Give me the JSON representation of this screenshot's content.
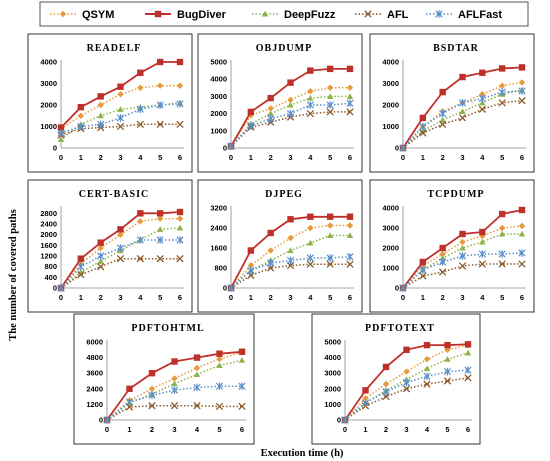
{
  "figure": {
    "ylabel": "The number of covered paths",
    "xlabel": "Execution time (h)"
  },
  "legend": [
    {
      "name": "QSYM",
      "color": "#E69A3D",
      "marker": "diamond",
      "dash": "dot"
    },
    {
      "name": "BugDiver",
      "color": "#C0302A",
      "marker": "square",
      "dash": "solid"
    },
    {
      "name": "DeepFuzz",
      "color": "#8DB34A",
      "marker": "triangle",
      "dash": "dot"
    },
    {
      "name": "AFL",
      "color": "#8C5A2B",
      "marker": "x",
      "dash": "dot"
    },
    {
      "name": "AFLFast",
      "color": "#5B8FC9",
      "marker": "star",
      "dash": "dot"
    }
  ],
  "chart_data": [
    {
      "type": "line",
      "title": "READELF",
      "x": [
        0,
        1,
        2,
        3,
        4,
        5,
        6
      ],
      "ylim": [
        0,
        4000
      ],
      "yticks": [
        0,
        1000,
        2000,
        3000,
        4000
      ],
      "series": [
        {
          "name": "QSYM",
          "values": [
            900,
            1500,
            2000,
            2500,
            2800,
            2900,
            2900
          ]
        },
        {
          "name": "BugDiver",
          "values": [
            950,
            1900,
            2400,
            2850,
            3500,
            4000,
            4000
          ]
        },
        {
          "name": "DeepFuzz",
          "values": [
            400,
            1100,
            1500,
            1800,
            1900,
            2000,
            2100
          ]
        },
        {
          "name": "AFL",
          "values": [
            600,
            900,
            950,
            1000,
            1100,
            1100,
            1100
          ]
        },
        {
          "name": "AFLFast",
          "values": [
            700,
            1000,
            1100,
            1400,
            1800,
            2000,
            2050
          ]
        }
      ]
    },
    {
      "type": "line",
      "title": "OBJDUMP",
      "x": [
        0,
        1,
        2,
        3,
        4,
        5,
        6
      ],
      "ylim": [
        0,
        5000
      ],
      "yticks": [
        0,
        1000,
        2000,
        3000,
        4000,
        5000
      ],
      "series": [
        {
          "name": "QSYM",
          "values": [
            100,
            1900,
            2300,
            2800,
            3300,
            3500,
            3500
          ]
        },
        {
          "name": "BugDiver",
          "values": [
            100,
            2100,
            2900,
            3800,
            4500,
            4600,
            4600
          ]
        },
        {
          "name": "DeepFuzz",
          "values": [
            100,
            1400,
            2000,
            2500,
            2900,
            3000,
            3000
          ]
        },
        {
          "name": "AFL",
          "values": [
            100,
            1200,
            1500,
            1800,
            2000,
            2100,
            2100
          ]
        },
        {
          "name": "AFLFast",
          "values": [
            100,
            1300,
            1700,
            2000,
            2500,
            2500,
            2600
          ]
        }
      ]
    },
    {
      "type": "line",
      "title": "BSDTAR",
      "x": [
        0,
        1,
        2,
        3,
        4,
        5,
        6
      ],
      "ylim": [
        0,
        4000
      ],
      "yticks": [
        0,
        1000,
        2000,
        3000,
        4000
      ],
      "series": [
        {
          "name": "QSYM",
          "values": [
            0,
            1000,
            1700,
            2100,
            2500,
            2900,
            3050
          ]
        },
        {
          "name": "BugDiver",
          "values": [
            0,
            1400,
            2600,
            3300,
            3500,
            3700,
            3750
          ]
        },
        {
          "name": "DeepFuzz",
          "values": [
            0,
            800,
            1300,
            1700,
            2100,
            2500,
            2700
          ]
        },
        {
          "name": "AFL",
          "values": [
            0,
            700,
            1100,
            1400,
            1800,
            2100,
            2200
          ]
        },
        {
          "name": "AFLFast",
          "values": [
            0,
            1000,
            1600,
            2100,
            2300,
            2600,
            2650
          ]
        }
      ]
    },
    {
      "type": "line",
      "title": "CERT-BASIC",
      "x": [
        0,
        1,
        2,
        3,
        4,
        5,
        6
      ],
      "ylim": [
        0,
        3000
      ],
      "yticks": [
        0,
        400,
        800,
        1200,
        1600,
        2000,
        2400,
        2800
      ],
      "series": [
        {
          "name": "QSYM",
          "values": [
            0,
            900,
            1500,
            2000,
            2500,
            2600,
            2600
          ]
        },
        {
          "name": "BugDiver",
          "values": [
            0,
            1100,
            1700,
            2200,
            2800,
            2800,
            2850
          ]
        },
        {
          "name": "DeepFuzz",
          "values": [
            0,
            600,
            1000,
            1400,
            1800,
            2200,
            2250
          ]
        },
        {
          "name": "AFL",
          "values": [
            0,
            500,
            800,
            1100,
            1100,
            1100,
            1100
          ]
        },
        {
          "name": "AFLFast",
          "values": [
            0,
            800,
            1200,
            1500,
            1800,
            1800,
            1800
          ]
        }
      ]
    },
    {
      "type": "line",
      "title": "DJPEG",
      "x": [
        0,
        1,
        2,
        3,
        4,
        5,
        6
      ],
      "ylim": [
        0,
        3200
      ],
      "yticks": [
        0,
        800,
        1600,
        2400,
        3200
      ],
      "series": [
        {
          "name": "QSYM",
          "values": [
            0,
            900,
            1500,
            2000,
            2400,
            2500,
            2500
          ]
        },
        {
          "name": "BugDiver",
          "values": [
            0,
            1500,
            2200,
            2750,
            2850,
            2850,
            2850
          ]
        },
        {
          "name": "DeepFuzz",
          "values": [
            0,
            700,
            1100,
            1500,
            1800,
            2100,
            2100
          ]
        },
        {
          "name": "AFL",
          "values": [
            0,
            500,
            800,
            900,
            950,
            950,
            950
          ]
        },
        {
          "name": "AFLFast",
          "values": [
            0,
            700,
            1000,
            1100,
            1200,
            1200,
            1250
          ]
        }
      ]
    },
    {
      "type": "line",
      "title": "TCPDUMP",
      "x": [
        0,
        1,
        2,
        3,
        4,
        5,
        6
      ],
      "ylim": [
        0,
        4000
      ],
      "yticks": [
        0,
        1000,
        2000,
        3000,
        4000
      ],
      "series": [
        {
          "name": "QSYM",
          "values": [
            0,
            1100,
            1700,
            2300,
            2600,
            3000,
            3100
          ]
        },
        {
          "name": "BugDiver",
          "values": [
            0,
            1300,
            2000,
            2700,
            2800,
            3700,
            3900
          ]
        },
        {
          "name": "DeepFuzz",
          "values": [
            0,
            900,
            1500,
            2000,
            2300,
            2700,
            2700
          ]
        },
        {
          "name": "AFL",
          "values": [
            0,
            600,
            800,
            1100,
            1200,
            1200,
            1200
          ]
        },
        {
          "name": "AFLFast",
          "values": [
            0,
            900,
            1300,
            1600,
            1700,
            1700,
            1750
          ]
        }
      ]
    },
    {
      "type": "line",
      "title": "PDFTOHTML",
      "x": [
        0,
        1,
        2,
        3,
        4,
        5,
        6
      ],
      "ylim": [
        0,
        6000
      ],
      "yticks": [
        0,
        1200,
        2400,
        3600,
        4800,
        6000
      ],
      "series": [
        {
          "name": "QSYM",
          "values": [
            0,
            1500,
            2400,
            3200,
            4000,
            4700,
            5200
          ]
        },
        {
          "name": "BugDiver",
          "values": [
            0,
            2400,
            3600,
            4500,
            4800,
            5100,
            5250
          ]
        },
        {
          "name": "DeepFuzz",
          "values": [
            0,
            1300,
            2000,
            2800,
            3500,
            4200,
            4600
          ]
        },
        {
          "name": "AFL",
          "values": [
            0,
            1000,
            1100,
            1100,
            1100,
            1050,
            1050
          ]
        },
        {
          "name": "AFLFast",
          "values": [
            0,
            1400,
            1900,
            2300,
            2500,
            2600,
            2600
          ]
        }
      ]
    },
    {
      "type": "line",
      "title": "PDFTOTEXT",
      "x": [
        0,
        1,
        2,
        3,
        4,
        5,
        6
      ],
      "ylim": [
        0,
        5000
      ],
      "yticks": [
        0,
        1000,
        2000,
        3000,
        4000,
        5000
      ],
      "series": [
        {
          "name": "QSYM",
          "values": [
            0,
            1400,
            2300,
            3100,
            3900,
            4500,
            4800
          ]
        },
        {
          "name": "BugDiver",
          "values": [
            0,
            1900,
            3400,
            4500,
            4800,
            4800,
            4850
          ]
        },
        {
          "name": "DeepFuzz",
          "values": [
            0,
            1100,
            1900,
            2600,
            3300,
            3900,
            4300
          ]
        },
        {
          "name": "AFL",
          "values": [
            0,
            900,
            1500,
            2000,
            2300,
            2500,
            2700
          ]
        },
        {
          "name": "AFLFast",
          "values": [
            0,
            1100,
            1800,
            2400,
            2800,
            3100,
            3200
          ]
        }
      ]
    }
  ]
}
